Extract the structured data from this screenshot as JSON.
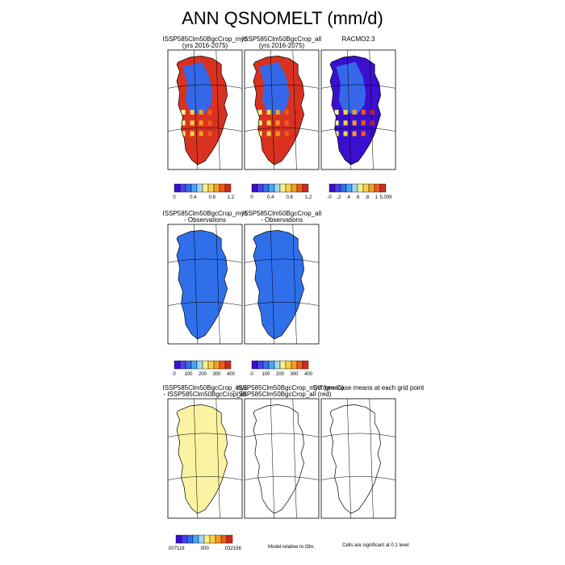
{
  "title": "ANN QSNOMELT (mm/d)",
  "panels": [
    {
      "row": 0,
      "col": 0,
      "line1": "ISSP585Clm50BgcCrop_myc",
      "line2": "(yrs 2016-2075)",
      "fill": "melt"
    },
    {
      "row": 0,
      "col": 1,
      "line1": "ISSP585Clm50BgcCrop_all",
      "line2": "(yrs 2016-2075)",
      "fill": "melt"
    },
    {
      "row": 0,
      "col": 2,
      "line1": "RACMO2.3",
      "line2": "",
      "fill": "racmo"
    },
    {
      "row": 1,
      "col": 0,
      "line1": "ISSP585Clm50BgcCrop_myc",
      "line2": "- Observations",
      "fill": "diff"
    },
    {
      "row": 1,
      "col": 1,
      "line1": "ISSP585Clm50BgcCrop_all",
      "line2": "- Observations",
      "fill": "diff"
    },
    {
      "row": 2,
      "col": 0,
      "line1": "ISSP585Clm50BgcCrop_myc",
      "line2": "- ISSP585Clm50BgcCrop_all",
      "fill": "pale"
    },
    {
      "row": 2,
      "col": 1,
      "line1": "ISSP585Clm50BgcCrop_myc (green)",
      "line2": "ISSP585Clm50BgcCrop_all (red)",
      "fill": "none"
    },
    {
      "row": 2,
      "col": 2,
      "line1": "Diff two Case means at each grid point",
      "line2": "",
      "fill": "none"
    }
  ],
  "colorbars": [
    {
      "id": "cb-melt-myc",
      "labels": [
        "0",
        "0.4",
        "0.8",
        "1.2"
      ]
    },
    {
      "id": "cb-melt-all",
      "labels": [
        "0",
        "0.4",
        "0.8",
        "1.2"
      ]
    },
    {
      "id": "cb-racmo",
      "labels": [
        "-0",
        ".2",
        ".4",
        ".6",
        ".8",
        "1",
        "5.009"
      ]
    },
    {
      "id": "cb-diff-myc",
      "labels": [
        "0",
        "100",
        "200",
        "300",
        "400"
      ]
    },
    {
      "id": "cb-diff-all",
      "labels": [
        "0",
        "100",
        "200",
        "300",
        "400"
      ]
    },
    {
      "id": "cb-case-diff",
      "labels": [
        ".007116",
        ".000",
        ".032156"
      ]
    }
  ],
  "notes": {
    "model_relative": "Model relative to Obs",
    "significance": "Cells are significant at 0.1 level"
  },
  "colors": {
    "scale": [
      "#3a0fd0",
      "#4d3df0",
      "#2f6fea",
      "#49a6f2",
      "#9fd6f7",
      "#f5f08a",
      "#f8d145",
      "#f59d25",
      "#ee5a21",
      "#d22a1c"
    ],
    "ice_interior": "#3468e8",
    "melt_edge": "#d93120",
    "pale": "#fbf3a2"
  }
}
